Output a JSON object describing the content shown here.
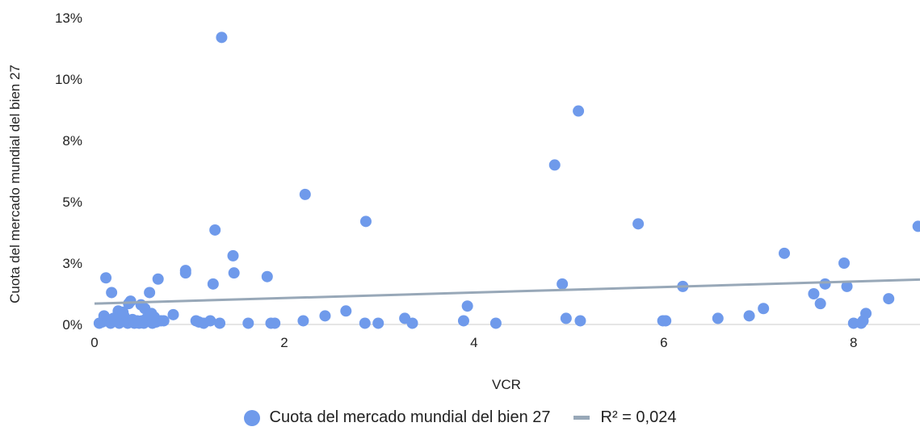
{
  "chart_data": {
    "type": "scatter",
    "title": "",
    "xlabel": "VCR",
    "ylabel": "Cuota del mercado mundial del bien 27",
    "xlim": [
      0,
      8.7
    ],
    "ylim": [
      0,
      0.125
    ],
    "x_ticks": [
      0,
      2,
      4,
      6,
      8
    ],
    "y_ticks": [
      {
        "value": 0,
        "label": "0%"
      },
      {
        "value": 0.025,
        "label": "3%"
      },
      {
        "value": 0.05,
        "label": "5%"
      },
      {
        "value": 0.075,
        "label": "8%"
      },
      {
        "value": 0.1,
        "label": "10%"
      },
      {
        "value": 0.125,
        "label": "13%"
      }
    ],
    "grid": false,
    "legend_position": "bottom",
    "colors": {
      "points": "#6F9AEB",
      "trendline": "#98A8B8"
    },
    "series": [
      {
        "name": "Cuota del mercado mundial del bien 27",
        "points": [
          [
            0.05,
            0.0005
          ],
          [
            0.08,
            0.001
          ],
          [
            0.1,
            0.0035
          ],
          [
            0.12,
            0.019
          ],
          [
            0.14,
            0.002
          ],
          [
            0.15,
            0.0015
          ],
          [
            0.17,
            0.0005
          ],
          [
            0.18,
            0.013
          ],
          [
            0.2,
            0.0025
          ],
          [
            0.22,
            0.0015
          ],
          [
            0.23,
            0.003
          ],
          [
            0.25,
            0.0055
          ],
          [
            0.26,
            0.0005
          ],
          [
            0.28,
            0.002
          ],
          [
            0.3,
            0.005
          ],
          [
            0.31,
            0.0035
          ],
          [
            0.33,
            0.001
          ],
          [
            0.35,
            0.0005
          ],
          [
            0.36,
            0.0085
          ],
          [
            0.38,
            0.0095
          ],
          [
            0.4,
            0.002
          ],
          [
            0.42,
            0.0005
          ],
          [
            0.45,
            0.0015
          ],
          [
            0.47,
            0.0005
          ],
          [
            0.49,
            0.008
          ],
          [
            0.5,
            0.0015
          ],
          [
            0.52,
            0.0005
          ],
          [
            0.53,
            0.0065
          ],
          [
            0.55,
            0.0025
          ],
          [
            0.58,
            0.013
          ],
          [
            0.6,
            0.0045
          ],
          [
            0.61,
            0.0005
          ],
          [
            0.63,
            0.003
          ],
          [
            0.65,
            0.001
          ],
          [
            0.67,
            0.0185
          ],
          [
            0.7,
            0.0015
          ],
          [
            0.73,
            0.0015
          ],
          [
            0.83,
            0.004
          ],
          [
            0.96,
            0.021
          ],
          [
            0.96,
            0.022
          ],
          [
            1.07,
            0.0015
          ],
          [
            1.1,
            0.001
          ],
          [
            1.15,
            0.0005
          ],
          [
            1.22,
            0.0015
          ],
          [
            1.25,
            0.0165
          ],
          [
            1.27,
            0.0385
          ],
          [
            1.32,
            0.0005
          ],
          [
            1.34,
            0.117
          ],
          [
            1.46,
            0.028
          ],
          [
            1.47,
            0.021
          ],
          [
            1.62,
            0.0005
          ],
          [
            1.82,
            0.0195
          ],
          [
            1.86,
            0.0005
          ],
          [
            1.9,
            0.0005
          ],
          [
            2.2,
            0.0015
          ],
          [
            2.22,
            0.053
          ],
          [
            2.43,
            0.0035
          ],
          [
            2.65,
            0.0055
          ],
          [
            2.85,
            0.0005
          ],
          [
            2.86,
            0.042
          ],
          [
            2.99,
            0.0005
          ],
          [
            3.27,
            0.0025
          ],
          [
            3.35,
            0.0005
          ],
          [
            3.89,
            0.0015
          ],
          [
            3.93,
            0.0075
          ],
          [
            4.23,
            0.0005
          ],
          [
            4.85,
            0.065
          ],
          [
            4.93,
            0.0165
          ],
          [
            4.97,
            0.0025
          ],
          [
            5.1,
            0.087
          ],
          [
            5.12,
            0.0015
          ],
          [
            5.73,
            0.041
          ],
          [
            5.99,
            0.0015
          ],
          [
            6.02,
            0.0015
          ],
          [
            6.2,
            0.0155
          ],
          [
            6.57,
            0.0025
          ],
          [
            6.9,
            0.0035
          ],
          [
            7.05,
            0.0065
          ],
          [
            7.27,
            0.029
          ],
          [
            7.58,
            0.0125
          ],
          [
            7.65,
            0.0085
          ],
          [
            7.7,
            0.0165
          ],
          [
            7.9,
            0.025
          ],
          [
            7.93,
            0.0155
          ],
          [
            8.0,
            0.0005
          ],
          [
            8.08,
            0.0005
          ],
          [
            8.1,
            0.0015
          ],
          [
            8.13,
            0.0045
          ],
          [
            8.37,
            0.0105
          ],
          [
            8.68,
            0.04
          ]
        ]
      }
    ],
    "trendline": {
      "name": "R² = 0,024",
      "x": [
        0,
        8.7
      ],
      "y": [
        0.0085,
        0.0183
      ]
    }
  }
}
